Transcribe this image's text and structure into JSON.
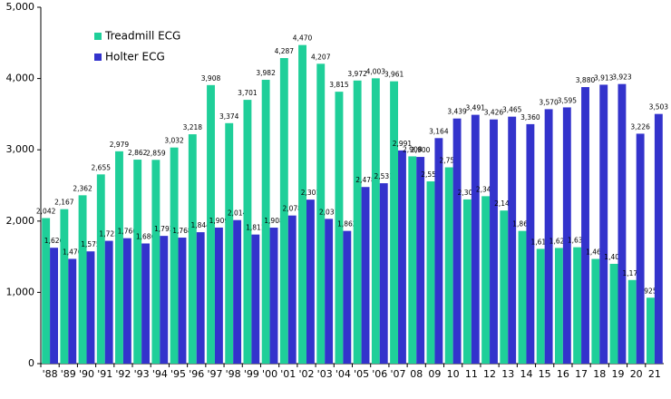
{
  "chart_data": {
    "type": "bar",
    "categories": [
      "'88",
      "'89",
      "'90",
      "'91",
      "'92",
      "'93",
      "'94",
      "'95",
      "'96",
      "'97",
      "'98",
      "'99",
      "'00",
      "'01",
      "'02",
      "'03",
      "'04",
      "'05",
      "'06",
      "'07",
      "08",
      "09",
      "10",
      "11",
      "12",
      "13",
      "14",
      "15",
      "16",
      "17",
      "18",
      "19",
      "20",
      "21"
    ],
    "series": [
      {
        "name": "Treadmill ECG",
        "color": "#1fcf99",
        "values": [
          2042,
          2167,
          2362,
          2655,
          2979,
          2862,
          2859,
          3032,
          3218,
          3908,
          3374,
          3701,
          3982,
          4287,
          4470,
          4207,
          3815,
          3972,
          4003,
          3961,
          2908,
          2557,
          2754,
          2304,
          2349,
          2148,
          1862,
          1610,
          1623,
          1633,
          1469,
          1400,
          1173,
          925
        ],
        "value_labels": [
          "2,042",
          "2,167",
          "2,362",
          "2,655",
          "2,979",
          "2,862",
          "2,859",
          "3,032",
          "3,218",
          "3,908",
          "3,374",
          "3,701",
          "3,982",
          "4,287",
          "4,470",
          "4,207",
          "3,815",
          "3,972",
          "4,003",
          "3,961",
          "2,908",
          "2,557",
          "2,754",
          "2,304",
          "2,349",
          "2,148",
          "1,862",
          "1,610",
          "1,623",
          "1,633",
          "1,469",
          "1,400",
          "1,173",
          "925"
        ]
      },
      {
        "name": "Holter ECG",
        "color": "#3333cc",
        "values": [
          1626,
          1470,
          1575,
          1723,
          1760,
          1686,
          1792,
          1768,
          1844,
          1909,
          2014,
          1811,
          1908,
          2078,
          2301,
          2031,
          1862,
          2478,
          2531,
          2991,
          2900,
          3164,
          3439,
          3491,
          3426,
          3465,
          3360,
          3570,
          3595,
          3880,
          3913,
          3923,
          3226,
          3503
        ],
        "value_labels": [
          "1,626",
          "1,470",
          "1,575",
          "1,723",
          "1,760",
          "1,686",
          "1,792",
          "1,768",
          "1,844",
          "1,909",
          "2,014",
          "1,811",
          "1,908",
          "2,078",
          "2,301",
          "2,031",
          "1,862",
          "2,478",
          "2,531",
          "2,991",
          "2,900",
          "3,164",
          "3,439",
          "3,491",
          "3,426",
          "3,465",
          "3,360",
          "3,570",
          "3,595",
          "3,880",
          "3,913",
          "3,923",
          "3,226",
          "3,503"
        ]
      }
    ],
    "ylim": [
      0,
      5000
    ],
    "yticks": [
      0,
      {
        "value": 1000,
        "label": "1,000"
      },
      {
        "value": 2000,
        "label": "2,000"
      },
      {
        "value": 3000,
        "label": "3,000"
      },
      {
        "value": 4000,
        "label": "4,000"
      },
      {
        "value": 5000,
        "label": "5,000"
      }
    ],
    "grid": false,
    "legend": "top-left"
  }
}
